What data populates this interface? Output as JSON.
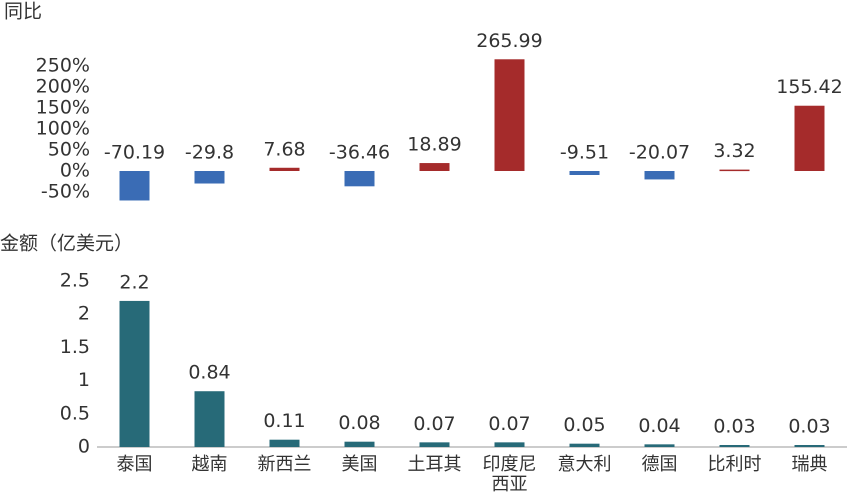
{
  "chart_data": [
    {
      "type": "bar",
      "y_label": "同比",
      "values": [
        -70.19,
        -29.8,
        7.68,
        -36.46,
        18.89,
        265.99,
        -9.51,
        -20.07,
        3.32,
        155.42
      ],
      "positive_color": "#a52b2b",
      "negative_color": "#3a6cb5",
      "ylim": [
        -80,
        280
      ],
      "yticks": [
        {
          "value": 250,
          "label": "250%"
        },
        {
          "value": 200,
          "label": "200%"
        },
        {
          "value": 150,
          "label": "150%"
        },
        {
          "value": 100,
          "label": "100%"
        },
        {
          "value": 50,
          "label": "50%"
        },
        {
          "value": 0,
          "label": "0%"
        },
        {
          "value": -50,
          "label": "-50%"
        }
      ],
      "grid": false
    },
    {
      "type": "bar",
      "y_label": "金额（亿美元）",
      "categories": [
        "泰国",
        "越南",
        "新西兰",
        "美国",
        "土耳其",
        "印度尼西亚",
        "意大利",
        "德国",
        "比利时",
        "瑞典"
      ],
      "values": [
        2.2,
        0.84,
        0.11,
        0.08,
        0.07,
        0.07,
        0.05,
        0.04,
        0.03,
        0.03
      ],
      "color": "#276a78",
      "ylim": [
        0,
        2.5
      ],
      "yticks": [
        0,
        0.5,
        1,
        1.5,
        2,
        2.5
      ],
      "grid": false
    }
  ]
}
